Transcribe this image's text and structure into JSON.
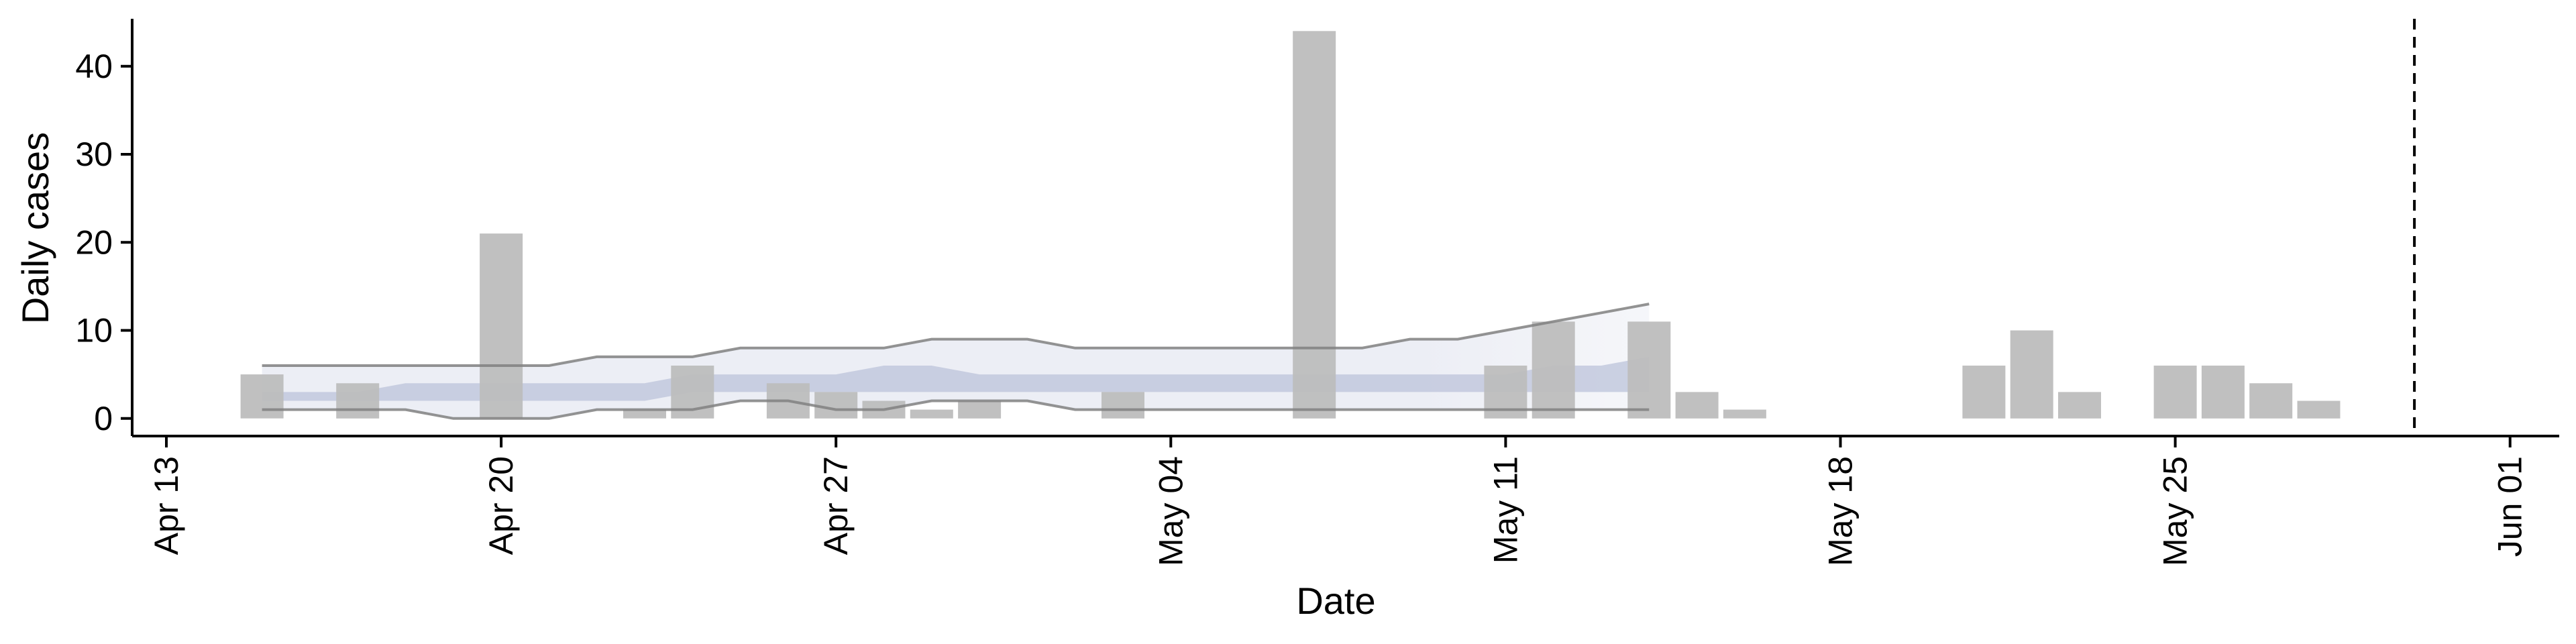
{
  "chart_data": {
    "type": "bar",
    "xlabel": "Date",
    "ylabel": "Daily cases",
    "x_axis": {
      "type": "date",
      "range": [
        "2020-04-13",
        "2020-06-01"
      ],
      "ticks": [
        {
          "date": "2020-04-13",
          "label": "Apr 13"
        },
        {
          "date": "2020-04-20",
          "label": "Apr 20"
        },
        {
          "date": "2020-04-27",
          "label": "Apr 27"
        },
        {
          "date": "2020-05-04",
          "label": "May 04"
        },
        {
          "date": "2020-05-11",
          "label": "May 11"
        },
        {
          "date": "2020-05-18",
          "label": "May 18"
        },
        {
          "date": "2020-05-25",
          "label": "May 25"
        },
        {
          "date": "2020-06-01",
          "label": "Jun 01"
        }
      ]
    },
    "y_axis": {
      "range": [
        -2,
        46
      ],
      "ticks": [
        0,
        10,
        20,
        30,
        40
      ]
    },
    "grid": false,
    "colors": {
      "bars": "#bdbdbd",
      "ribbon_outer": "#dfe2ee",
      "ribbon_inner": "#bcc3da",
      "bound_lines": "#808080",
      "axis": "#000000",
      "reference_line": "#000000"
    },
    "bars": [
      {
        "date": "2020-04-15",
        "value": 5
      },
      {
        "date": "2020-04-17",
        "value": 4
      },
      {
        "date": "2020-04-20",
        "value": 21
      },
      {
        "date": "2020-04-23",
        "value": 1
      },
      {
        "date": "2020-04-24",
        "value": 6
      },
      {
        "date": "2020-04-26",
        "value": 4
      },
      {
        "date": "2020-04-27",
        "value": 3
      },
      {
        "date": "2020-04-28",
        "value": 2
      },
      {
        "date": "2020-04-29",
        "value": 1
      },
      {
        "date": "2020-04-30",
        "value": 2
      },
      {
        "date": "2020-05-03",
        "value": 3
      },
      {
        "date": "2020-05-07",
        "value": 44
      },
      {
        "date": "2020-05-11",
        "value": 6
      },
      {
        "date": "2020-05-12",
        "value": 11
      },
      {
        "date": "2020-05-14",
        "value": 11
      },
      {
        "date": "2020-05-15",
        "value": 3
      },
      {
        "date": "2020-05-16",
        "value": 1
      },
      {
        "date": "2020-05-21",
        "value": 6
      },
      {
        "date": "2020-05-22",
        "value": 10
      },
      {
        "date": "2020-05-23",
        "value": 3
      },
      {
        "date": "2020-05-25",
        "value": 6
      },
      {
        "date": "2020-05-26",
        "value": 6
      },
      {
        "date": "2020-05-27",
        "value": 4
      },
      {
        "date": "2020-05-28",
        "value": 2
      }
    ],
    "estimate": {
      "dates": [
        "2020-04-15",
        "2020-04-16",
        "2020-04-17",
        "2020-04-18",
        "2020-04-19",
        "2020-04-20",
        "2020-04-21",
        "2020-04-22",
        "2020-04-23",
        "2020-04-24",
        "2020-04-25",
        "2020-04-26",
        "2020-04-27",
        "2020-04-28",
        "2020-04-29",
        "2020-04-30",
        "2020-05-01",
        "2020-05-02",
        "2020-05-03",
        "2020-05-04",
        "2020-05-05",
        "2020-05-06",
        "2020-05-07",
        "2020-05-08",
        "2020-05-09",
        "2020-05-10",
        "2020-05-11",
        "2020-05-12",
        "2020-05-13",
        "2020-05-14"
      ],
      "outer_upper": [
        6,
        6,
        6,
        6,
        6,
        6,
        6,
        7,
        7,
        7,
        8,
        8,
        8,
        8,
        9,
        9,
        9,
        8,
        8,
        8,
        8,
        8,
        8,
        8,
        9,
        9,
        10,
        11,
        12,
        13
      ],
      "outer_lower": [
        1,
        1,
        1,
        1,
        0,
        0,
        0,
        1,
        1,
        1,
        2,
        2,
        1,
        1,
        2,
        2,
        2,
        1,
        1,
        1,
        1,
        1,
        1,
        1,
        1,
        1,
        1,
        1,
        1,
        1
      ],
      "inner_upper": [
        3,
        3,
        3,
        4,
        4,
        4,
        4,
        4,
        4,
        5,
        5,
        5,
        5,
        6,
        6,
        5,
        5,
        5,
        5,
        5,
        5,
        5,
        5,
        5,
        5,
        5,
        5,
        6,
        6,
        7
      ],
      "inner_lower": [
        2,
        2,
        2,
        2,
        2,
        2,
        2,
        2,
        2,
        3,
        3,
        3,
        3,
        3,
        3,
        3,
        3,
        3,
        3,
        3,
        3,
        3,
        3,
        3,
        3,
        3,
        3,
        3,
        3,
        3
      ],
      "outer_fade_from": "2020-05-09"
    },
    "reference_line": {
      "date": "2020-05-30",
      "style": "dashed"
    }
  }
}
